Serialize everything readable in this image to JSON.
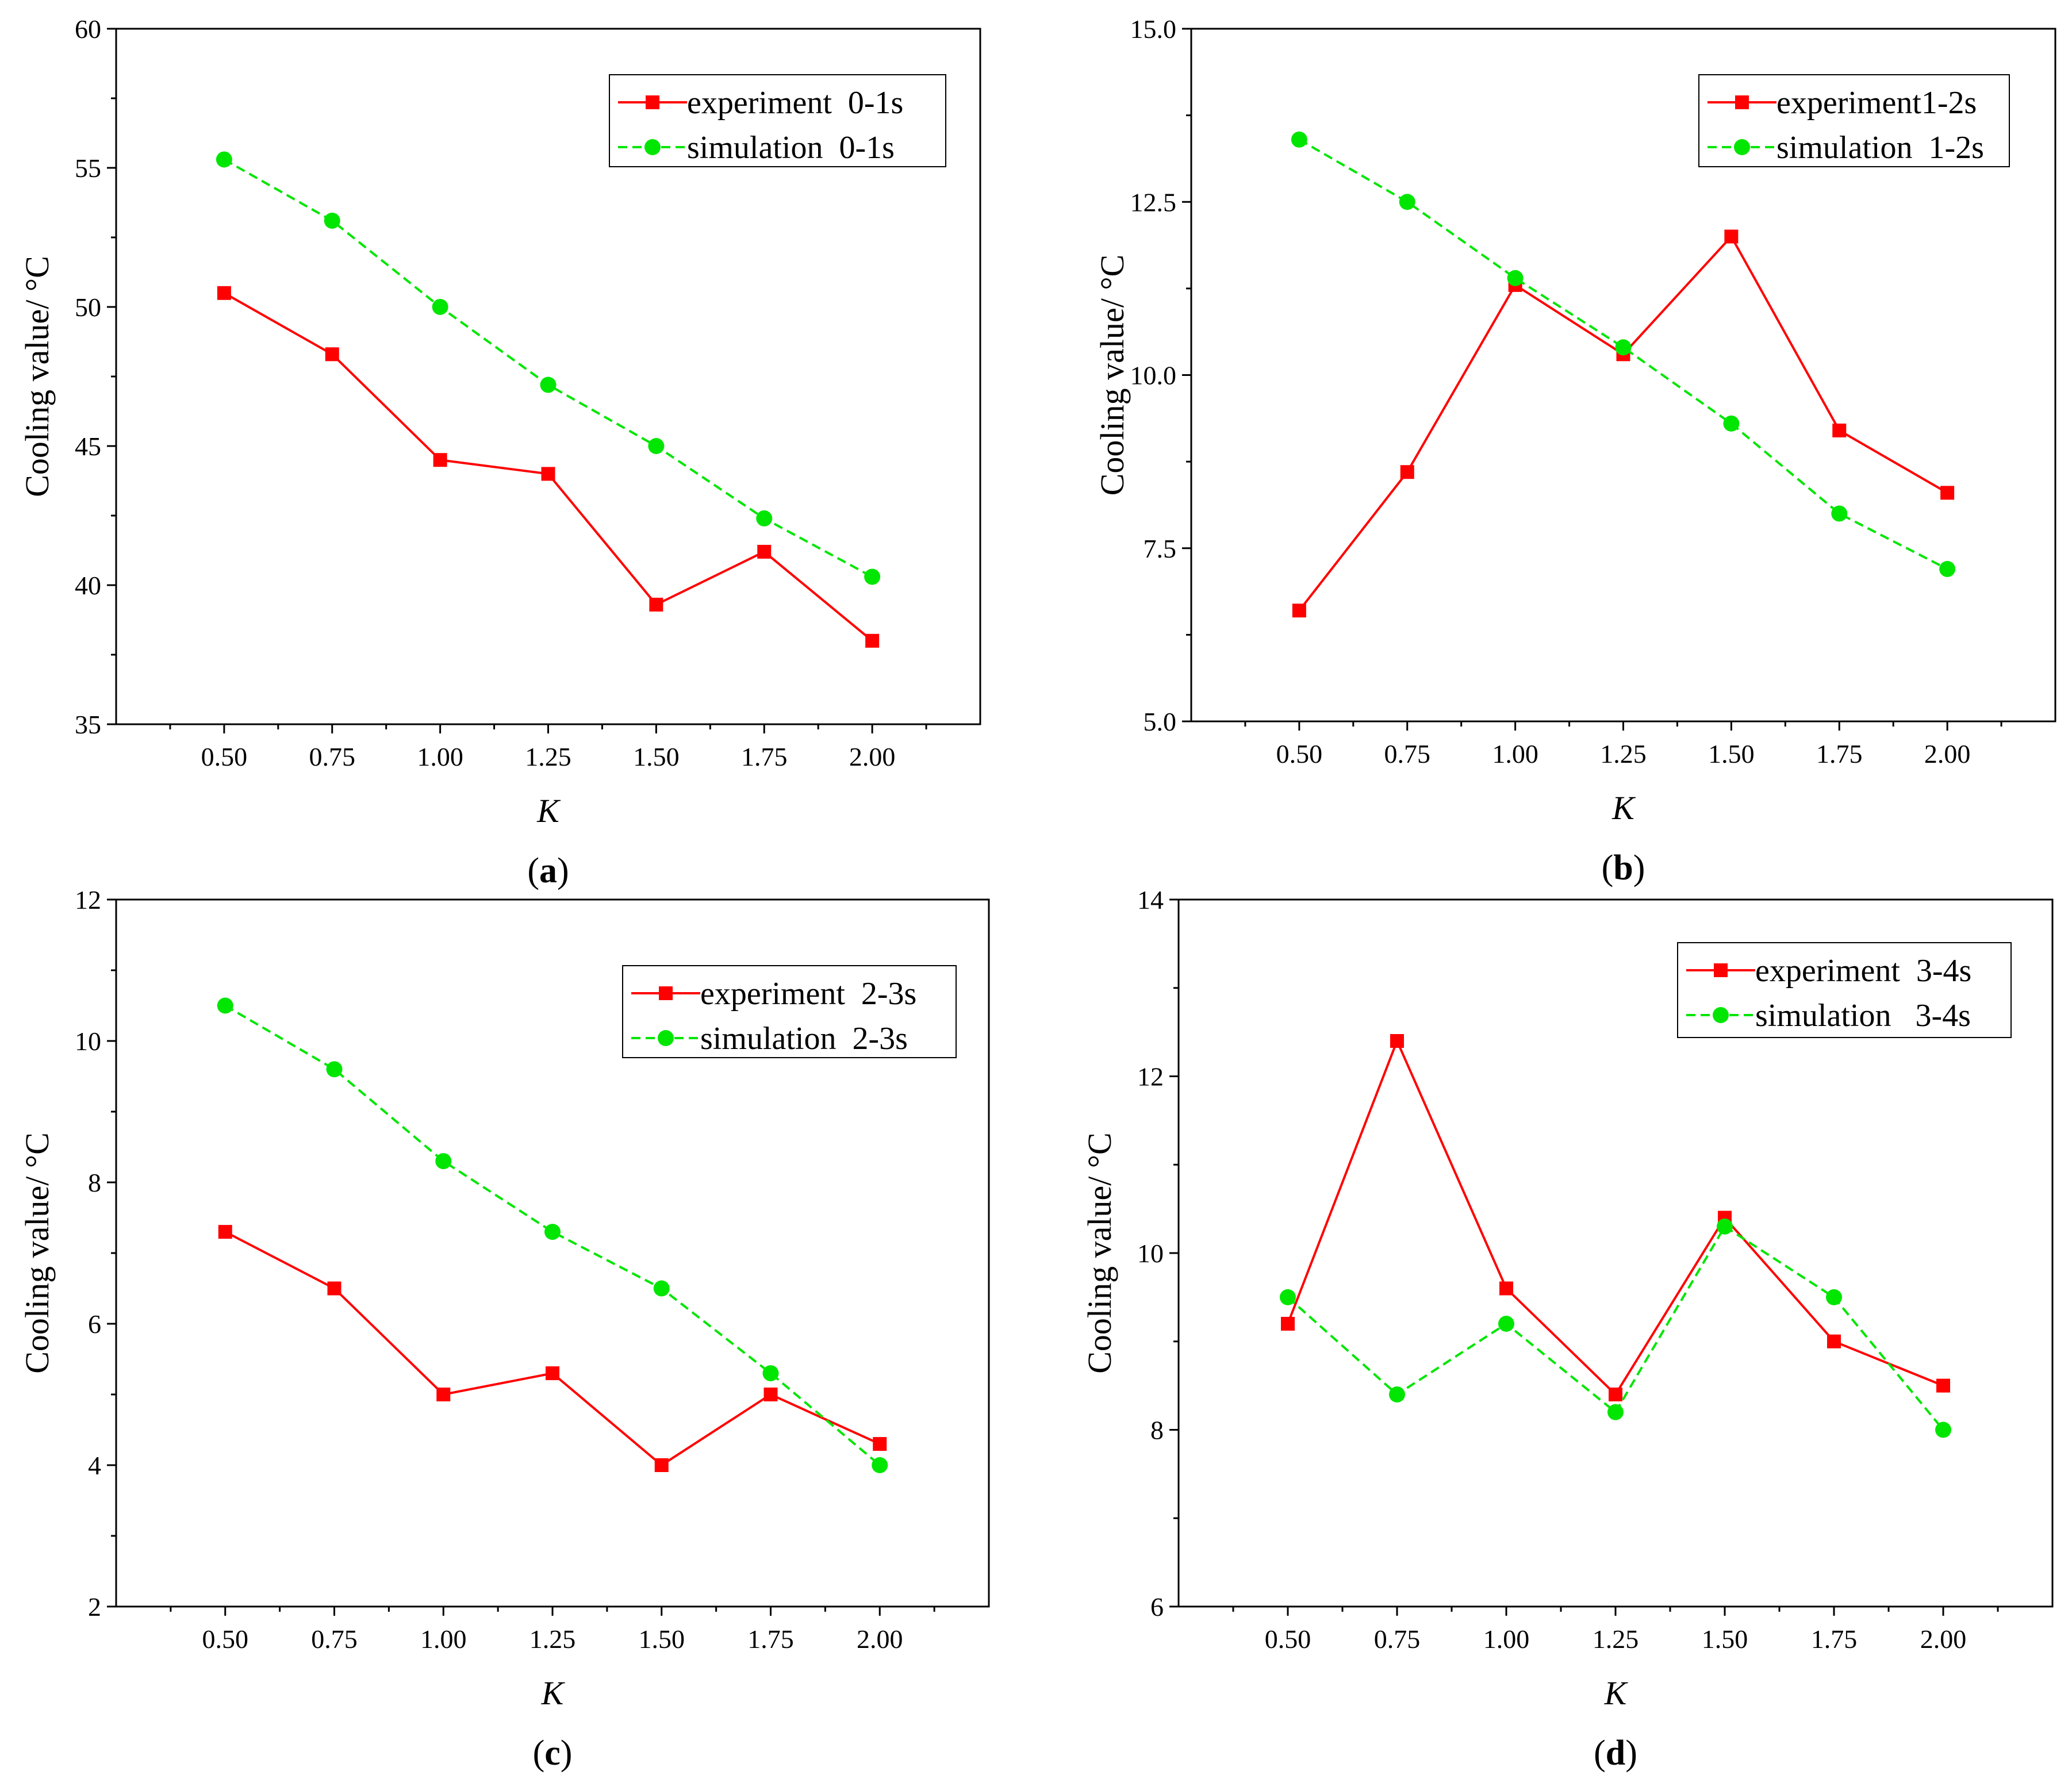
{
  "chart_data": [
    {
      "id": "a",
      "type": "line",
      "panel_label": "a",
      "xlabel": "K",
      "ylabel": "Cooling value/ °C",
      "x": [
        0.5,
        0.75,
        1.0,
        1.25,
        1.5,
        1.75,
        2.0
      ],
      "xtick_labels": [
        "0.50",
        "0.75",
        "1.00",
        "1.25",
        "1.50",
        "1.75",
        "2.00"
      ],
      "xlim": [
        0.25,
        2.25
      ],
      "ylim": [
        35,
        60
      ],
      "yticks": [
        35,
        40,
        45,
        50,
        55,
        60
      ],
      "ytick_labels": [
        "35",
        "40",
        "45",
        "50",
        "55",
        "60"
      ],
      "legend_position": "top-right",
      "series": [
        {
          "name": "experiment  0-1s",
          "style": "solid",
          "marker": "square",
          "color": "#ff0000",
          "values": [
            50.5,
            48.3,
            44.5,
            44.0,
            39.3,
            41.2,
            38.0
          ]
        },
        {
          "name": "simulation  0-1s",
          "style": "dashed",
          "marker": "circle",
          "color": "#00e600",
          "values": [
            55.3,
            53.1,
            50.0,
            47.2,
            45.0,
            42.4,
            40.3
          ]
        }
      ]
    },
    {
      "id": "b",
      "type": "line",
      "panel_label": "b",
      "xlabel": "K",
      "ylabel": "Cooling value/ °C",
      "x": [
        0.5,
        0.75,
        1.0,
        1.25,
        1.5,
        1.75,
        2.0
      ],
      "xtick_labels": [
        "0.50",
        "0.75",
        "1.00",
        "1.25",
        "1.50",
        "1.75",
        "2.00"
      ],
      "xlim": [
        0.25,
        2.25
      ],
      "ylim": [
        5.0,
        15.0
      ],
      "yticks": [
        5.0,
        7.5,
        10.0,
        12.5,
        15.0
      ],
      "ytick_labels": [
        "5.0",
        "7.5",
        "10.0",
        "12.5",
        "15.0"
      ],
      "legend_position": "top-right",
      "series": [
        {
          "name": "experiment1-2s",
          "style": "solid",
          "marker": "square",
          "color": "#ff0000",
          "values": [
            6.6,
            8.6,
            11.3,
            10.3,
            12.0,
            9.2,
            8.3
          ]
        },
        {
          "name": "simulation  1-2s",
          "style": "dashed",
          "marker": "circle",
          "color": "#00e600",
          "values": [
            13.4,
            12.5,
            11.4,
            10.4,
            9.3,
            8.0,
            7.2
          ]
        }
      ]
    },
    {
      "id": "c",
      "type": "line",
      "panel_label": "c",
      "xlabel": "K",
      "ylabel": "Cooling value/ °C",
      "x": [
        0.5,
        0.75,
        1.0,
        1.25,
        1.5,
        1.75,
        2.0
      ],
      "xtick_labels": [
        "0.50",
        "0.75",
        "1.00",
        "1.25",
        "1.50",
        "1.75",
        "2.00"
      ],
      "xlim": [
        0.25,
        2.25
      ],
      "ylim": [
        2,
        12
      ],
      "yticks": [
        2,
        4,
        6,
        8,
        10,
        12
      ],
      "ytick_labels": [
        "2",
        "4",
        "6",
        "8",
        "10",
        "12"
      ],
      "legend_position": "top-right",
      "series": [
        {
          "name": "experiment  2-3s",
          "style": "solid",
          "marker": "square",
          "color": "#ff0000",
          "values": [
            7.3,
            6.5,
            5.0,
            5.3,
            4.0,
            5.0,
            4.3
          ]
        },
        {
          "name": "simulation  2-3s",
          "style": "dashed",
          "marker": "circle",
          "color": "#00e600",
          "values": [
            10.5,
            9.6,
            8.3,
            7.3,
            6.5,
            5.3,
            4.0
          ]
        }
      ]
    },
    {
      "id": "d",
      "type": "line",
      "panel_label": "d",
      "xlabel": "K",
      "ylabel": "Cooling value/ °C",
      "x": [
        0.5,
        0.75,
        1.0,
        1.25,
        1.5,
        1.75,
        2.0
      ],
      "xtick_labels": [
        "0.50",
        "0.75",
        "1.00",
        "1.25",
        "1.50",
        "1.75",
        "2.00"
      ],
      "xlim": [
        0.25,
        2.25
      ],
      "ylim": [
        6,
        14
      ],
      "yticks": [
        6,
        8,
        10,
        12,
        14
      ],
      "ytick_labels": [
        "6",
        "8",
        "10",
        "12",
        "14"
      ],
      "legend_position": "top-right",
      "series": [
        {
          "name": "experiment  3-4s",
          "style": "solid",
          "marker": "square",
          "color": "#ff0000",
          "values": [
            9.2,
            12.4,
            9.6,
            8.4,
            10.4,
            9.0,
            8.5
          ]
        },
        {
          "name": "simulation   3-4s",
          "style": "dashed",
          "marker": "circle",
          "color": "#00e600",
          "values": [
            9.5,
            8.4,
            9.2,
            8.2,
            10.3,
            9.5,
            8.0
          ]
        }
      ]
    }
  ]
}
